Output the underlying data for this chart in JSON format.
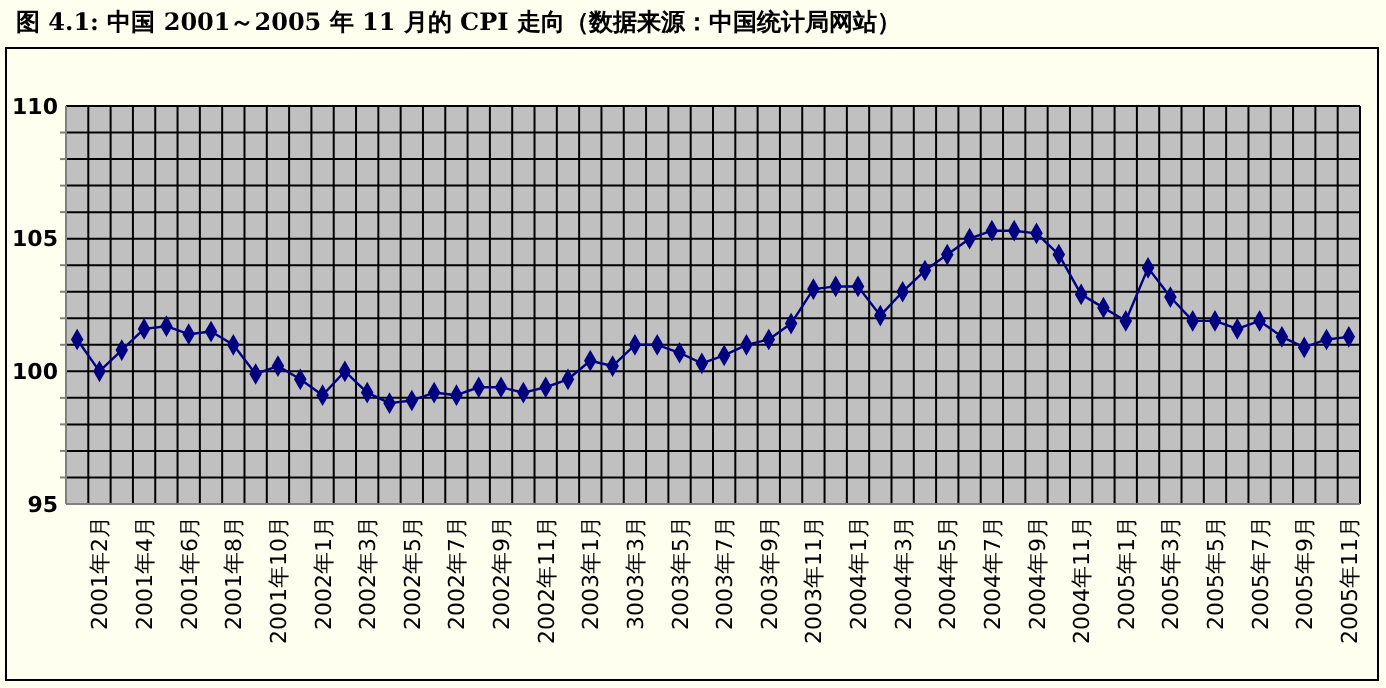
{
  "chart_data": {
    "type": "line",
    "title": "图 4.1: 中国 2001～2005 年 11 月的 CPI 走向（数据来源：中国统计局网站）",
    "categories": [
      null,
      "2001年2月",
      null,
      "2001年4月",
      null,
      "2001年6月",
      null,
      "2001年8月",
      null,
      "2001年10月",
      null,
      "2002年1月",
      null,
      "2002年3月",
      null,
      "2002年5月",
      null,
      "2002年7月",
      null,
      "2002年9月",
      null,
      "2002年11月",
      null,
      "2003年1月",
      null,
      "3003年3月",
      null,
      "2003年5月",
      null,
      "2003年7月",
      null,
      "2003年9月",
      null,
      "2003年11月",
      null,
      "2004年1月",
      null,
      "2004年3月",
      null,
      "2004年5月",
      null,
      "2004年7月",
      null,
      "2004年9月",
      null,
      "2004年11月",
      null,
      "2005年1月",
      null,
      "2005年3月",
      null,
      "2005年5月",
      null,
      "2005年7月",
      null,
      "2005年9月",
      null,
      "2005年11月"
    ],
    "series": [
      {
        "color": "#000080",
        "values": [
          101.2,
          100.0,
          100.8,
          101.6,
          101.7,
          101.4,
          101.5,
          101.0,
          99.9,
          100.2,
          99.7,
          99.1,
          100.0,
          99.2,
          98.8,
          98.9,
          99.2,
          99.1,
          99.4,
          99.4,
          99.2,
          99.4,
          99.7,
          100.4,
          100.2,
          101.0,
          101.0,
          100.7,
          100.3,
          100.6,
          101.0,
          101.2,
          101.8,
          103.1,
          103.2,
          103.2,
          102.1,
          103.0,
          103.8,
          104.4,
          105.0,
          105.3,
          105.3,
          105.2,
          104.4,
          102.9,
          102.4,
          101.9,
          103.9,
          102.8,
          101.9,
          101.9,
          101.6,
          101.9,
          101.3,
          100.9,
          101.2,
          101.3
        ]
      }
    ],
    "ylim": [
      95,
      110
    ],
    "yticks": [
      95,
      {
        "value": 96,
        "label": null
      },
      {
        "value": 97,
        "label": null
      },
      {
        "value": 98,
        "label": null
      },
      {
        "value": 99,
        "label": null
      },
      100,
      {
        "value": 101,
        "label": null
      },
      {
        "value": 102,
        "label": null
      },
      {
        "value": 103,
        "label": null
      },
      {
        "value": 104,
        "label": null
      },
      105,
      {
        "value": 106,
        "label": null
      },
      {
        "value": 107,
        "label": null
      },
      {
        "value": 108,
        "label": null
      },
      {
        "value": 109,
        "label": null
      },
      110
    ],
    "grid": true,
    "marker": "diamond",
    "line_style": "solid"
  }
}
